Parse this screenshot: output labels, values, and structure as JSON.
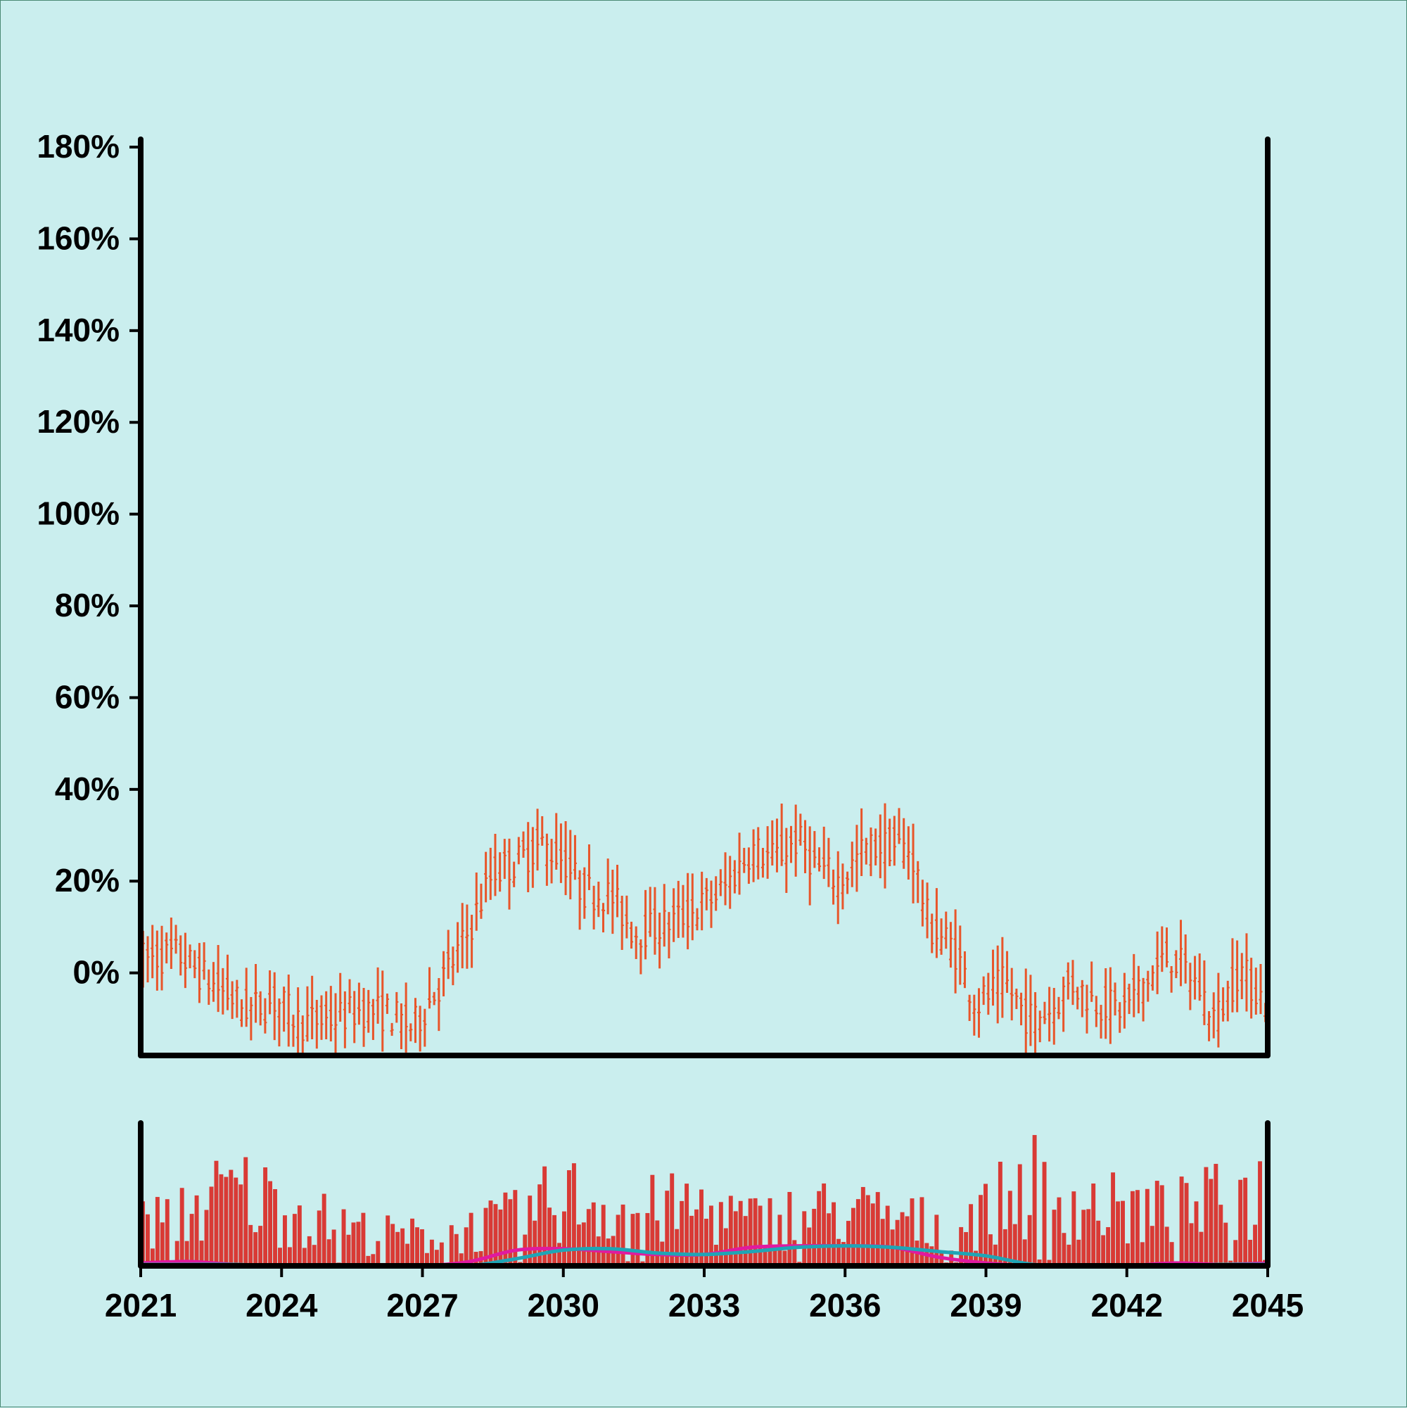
{
  "chart_data": {
    "type": "ohlc",
    "title": "",
    "xlabel": "",
    "ylabel": "",
    "x_ticks": [
      "2021",
      "2024",
      "2027",
      "2030",
      "2033",
      "2036",
      "2039",
      "2042",
      "2045"
    ],
    "y_ticks": [
      "0%",
      "20%",
      "40%",
      "60%",
      "80%",
      "100%",
      "120%",
      "140%",
      "160%",
      "180%"
    ],
    "x_range": [
      2021,
      2045
    ],
    "y_range": [
      -18,
      182
    ],
    "colors": {
      "background": "#caeeee",
      "candles": "#e8552a",
      "volume": "#d93a35",
      "line_magenta": "#e01aa0",
      "line_teal": "#1fa5b5",
      "axes": "#000000"
    },
    "grid": false,
    "legend": "none",
    "price_anchors": [
      [
        2021.0,
        3
      ],
      [
        2021.8,
        4
      ],
      [
        2022.6,
        -3
      ],
      [
        2023.3,
        -8
      ],
      [
        2023.9,
        -6
      ],
      [
        2024.4,
        -11
      ],
      [
        2025.1,
        -10
      ],
      [
        2025.7,
        -8
      ],
      [
        2026.3,
        -9
      ],
      [
        2026.8,
        -12
      ],
      [
        2027.4,
        -2
      ],
      [
        2027.9,
        7
      ],
      [
        2028.5,
        22
      ],
      [
        2029.0,
        24
      ],
      [
        2029.5,
        28
      ],
      [
        2030.0,
        25
      ],
      [
        2030.4,
        18
      ],
      [
        2031.0,
        17
      ],
      [
        2031.5,
        9
      ],
      [
        2032.0,
        10
      ],
      [
        2032.7,
        13
      ],
      [
        2033.4,
        18
      ],
      [
        2034.0,
        27
      ],
      [
        2034.5,
        25
      ],
      [
        2035.0,
        29
      ],
      [
        2035.4,
        23
      ],
      [
        2035.9,
        20
      ],
      [
        2036.4,
        27
      ],
      [
        2036.9,
        28
      ],
      [
        2037.4,
        27
      ],
      [
        2037.8,
        10
      ],
      [
        2038.3,
        6
      ],
      [
        2038.8,
        -7
      ],
      [
        2039.4,
        -2
      ],
      [
        2039.9,
        -10
      ],
      [
        2040.4,
        -8
      ],
      [
        2040.8,
        -2
      ],
      [
        2041.3,
        -6
      ],
      [
        2041.9,
        -8
      ],
      [
        2042.4,
        -2
      ],
      [
        2042.9,
        4
      ],
      [
        2043.4,
        -1
      ],
      [
        2043.9,
        -10
      ],
      [
        2044.4,
        1
      ],
      [
        2045.0,
        -7
      ]
    ],
    "volume_anchors": [
      [
        2021.0,
        28
      ],
      [
        2022.0,
        38
      ],
      [
        2023.0,
        52
      ],
      [
        2024.0,
        42
      ],
      [
        2025.0,
        30
      ],
      [
        2026.0,
        22
      ],
      [
        2027.0,
        20
      ],
      [
        2028.0,
        25
      ],
      [
        2029.0,
        32
      ],
      [
        2030.0,
        48
      ],
      [
        2031.0,
        42
      ],
      [
        2032.0,
        38
      ],
      [
        2033.0,
        40
      ],
      [
        2034.0,
        30
      ],
      [
        2035.0,
        35
      ],
      [
        2036.0,
        38
      ],
      [
        2037.0,
        32
      ],
      [
        2038.0,
        28
      ],
      [
        2039.0,
        36
      ],
      [
        2040.0,
        58
      ],
      [
        2041.0,
        42
      ],
      [
        2042.0,
        38
      ],
      [
        2043.0,
        36
      ],
      [
        2044.0,
        44
      ],
      [
        2045.0,
        52
      ]
    ],
    "volume_scale_max": 100,
    "line_magenta": [
      [
        2021.0,
        2
      ],
      [
        2022.0,
        3
      ],
      [
        2023.0,
        1
      ],
      [
        2024.0,
        0
      ],
      [
        2025.0,
        0
      ],
      [
        2026.0,
        0
      ],
      [
        2027.0,
        0
      ],
      [
        2028.0,
        3
      ],
      [
        2029.0,
        11
      ],
      [
        2030.0,
        12
      ],
      [
        2031.0,
        10
      ],
      [
        2032.0,
        8
      ],
      [
        2033.0,
        8
      ],
      [
        2034.0,
        13
      ],
      [
        2035.0,
        14
      ],
      [
        2036.0,
        14
      ],
      [
        2037.0,
        13
      ],
      [
        2038.0,
        6
      ],
      [
        2039.0,
        2
      ],
      [
        2040.0,
        0
      ],
      [
        2041.0,
        0
      ],
      [
        2042.0,
        0
      ],
      [
        2043.0,
        2
      ],
      [
        2044.0,
        1
      ],
      [
        2045.0,
        2
      ]
    ],
    "line_teal": [
      [
        2021.0,
        1
      ],
      [
        2022.0,
        1
      ],
      [
        2023.0,
        1
      ],
      [
        2024.0,
        0
      ],
      [
        2025.0,
        0
      ],
      [
        2026.0,
        0
      ],
      [
        2027.0,
        0
      ],
      [
        2028.0,
        0
      ],
      [
        2029.0,
        5
      ],
      [
        2030.0,
        11
      ],
      [
        2031.0,
        12
      ],
      [
        2032.0,
        9
      ],
      [
        2033.0,
        8
      ],
      [
        2034.0,
        10
      ],
      [
        2035.0,
        13
      ],
      [
        2036.0,
        14
      ],
      [
        2037.0,
        13
      ],
      [
        2038.0,
        10
      ],
      [
        2039.0,
        7
      ],
      [
        2040.0,
        1
      ],
      [
        2041.0,
        0
      ],
      [
        2042.0,
        0
      ],
      [
        2043.0,
        0
      ],
      [
        2044.0,
        1
      ],
      [
        2045.0,
        1
      ]
    ]
  }
}
